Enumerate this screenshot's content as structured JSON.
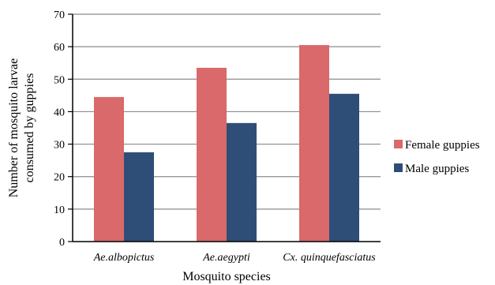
{
  "chart_data": {
    "type": "bar",
    "xlabel": "Mosquito species",
    "ylabel": "Number of mosquito larvae consumed by guppies",
    "ylabel_lines": [
      "Number of mosquito larvae",
      "consumed by guppies"
    ],
    "categories": [
      "Ae.albopictus",
      "Ae.aegypti",
      "Cx. quinquefasciatus"
    ],
    "series": [
      {
        "name": "Female guppies",
        "values": [
          44.5,
          53.5,
          60.5
        ],
        "color": "#d9696a"
      },
      {
        "name": "Male guppies",
        "values": [
          27.5,
          36.5,
          45.5
        ],
        "color": "#2e4e78"
      }
    ],
    "ylim": [
      0,
      70
    ],
    "yticks": [
      0,
      10,
      20,
      30,
      40,
      50,
      60,
      70
    ],
    "grid": true,
    "legend_position": "right"
  }
}
